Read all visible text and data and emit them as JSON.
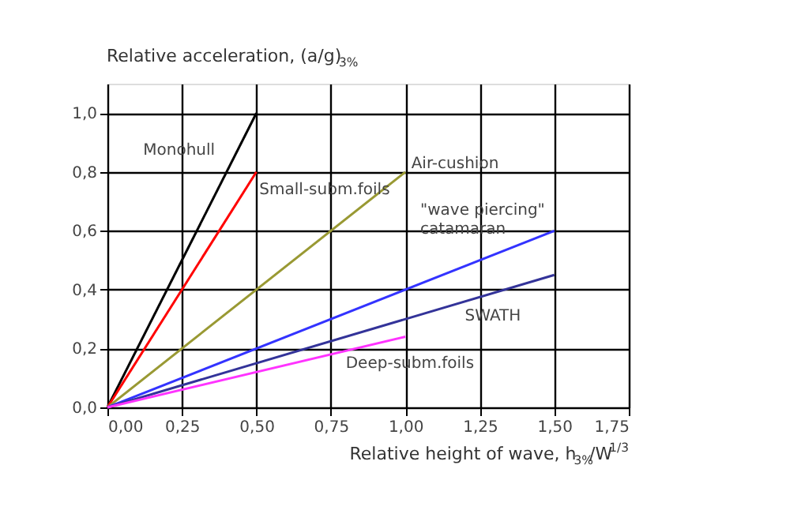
{
  "chart_data": {
    "type": "line",
    "ylabel": "Relative acceleration, (a/g)$_{3%}$",
    "xlabel": "Relative height of wave, h$_{3%}$/W$^{1/3}$",
    "xlim": [
      0,
      1.75
    ],
    "xticks": [
      {
        "value": 0,
        "label": "0,00"
      },
      {
        "value": 0.25,
        "label": "0,25"
      },
      {
        "value": 0.5,
        "label": "0,50"
      },
      {
        "value": 0.75,
        "label": "0,75"
      },
      {
        "value": 1,
        "label": "1,00"
      },
      {
        "value": 1.25,
        "label": "1,25"
      },
      {
        "value": 1.5,
        "label": "1,50"
      },
      {
        "value": 1.75,
        "label": "1,75"
      }
    ],
    "ylim": [
      0,
      1.1
    ],
    "yticks": [
      {
        "value": 0,
        "label": "0,0"
      },
      {
        "value": 0.2,
        "label": "0,2"
      },
      {
        "value": 0.4,
        "label": "0,4"
      },
      {
        "value": 0.6,
        "label": "0,6"
      },
      {
        "value": 0.8,
        "label": "0,8"
      },
      {
        "value": 1,
        "label": "1,0"
      }
    ],
    "grid": true,
    "legend": false,
    "marker": "none",
    "line_style": "solid",
    "series": [
      {
        "name": "Monohull",
        "color": "#000000",
        "x": [
          0,
          0.5
        ],
        "values": [
          0,
          1.0
        ]
      },
      {
        "name": "Small-subm.foils",
        "color": "#ff0000",
        "x": [
          0,
          0.5
        ],
        "values": [
          0,
          0.8
        ]
      },
      {
        "name": "Air-cushion",
        "color": "#999933",
        "x": [
          0,
          1.0
        ],
        "values": [
          0,
          0.8
        ]
      },
      {
        "name": "\"wave piercing\"\ncatamaran",
        "color": "#3333ff",
        "x": [
          0,
          1.5
        ],
        "values": [
          0,
          0.6
        ]
      },
      {
        "name": "SWATH",
        "color": "#333399",
        "x": [
          0,
          1.5
        ],
        "values": [
          0,
          0.45
        ]
      },
      {
        "name": "Deep-subm.foils",
        "color": "#ff33ff",
        "x": [
          0,
          1.0
        ],
        "values": [
          0,
          0.24
        ]
      }
    ]
  }
}
